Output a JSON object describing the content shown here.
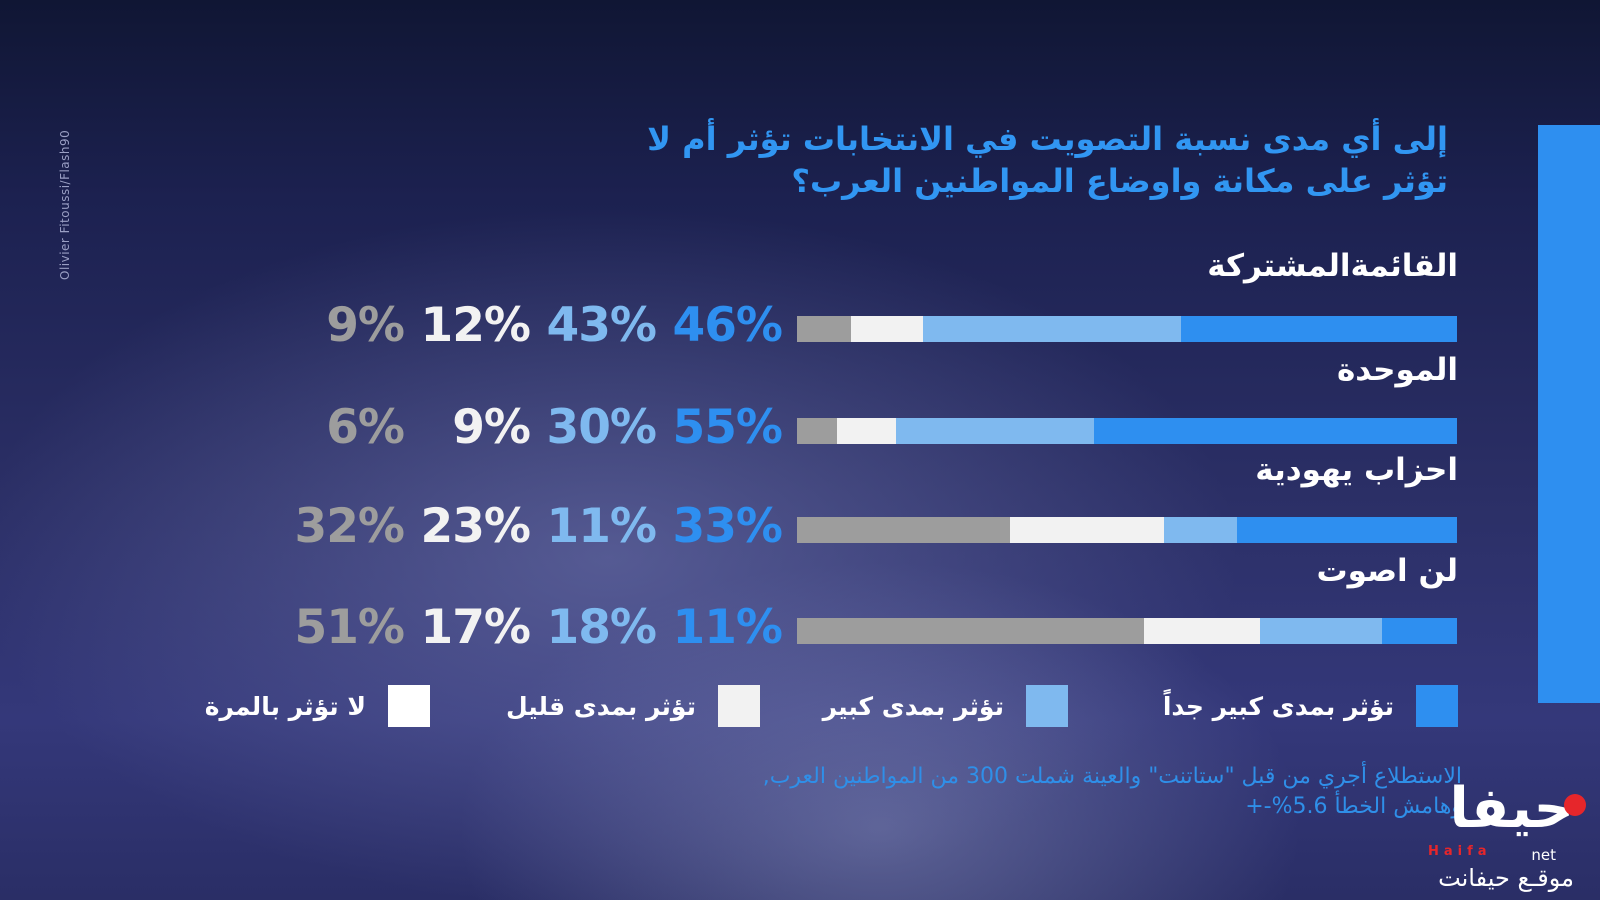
{
  "photo_credit": "Olivier Fitoussi/Flash90",
  "chart_data": {
    "type": "bar",
    "orientation": "horizontal-stacked",
    "title": "إلى أي مدى نسبة التصويت في الانتخابات تؤثر أم لا تؤثر على مكانة واوضاع المواطنين العرب؟",
    "categories": [
      "القائمةالمشتركة",
      "الموحدة",
      "احزاب يهودية",
      "لن اصوت"
    ],
    "series": [
      {
        "name": "تؤثر بمدى كبير جداً",
        "color": "#2e8ff0",
        "values": [
          46,
          55,
          33,
          11
        ]
      },
      {
        "name": "تؤثر بمدى كبير",
        "color": "#7fb9ef",
        "values": [
          43,
          30,
          11,
          18
        ]
      },
      {
        "name": "تؤثر بمدى قليل",
        "color": "#f2f2f2",
        "values": [
          12,
          9,
          23,
          17
        ]
      },
      {
        "name": "لا تؤثر بالمرة",
        "color": "#9d9d9d",
        "values": [
          9,
          6,
          32,
          51
        ]
      }
    ],
    "pct_labels": [
      [
        "46%",
        "43%",
        "12%",
        "9%"
      ],
      [
        "55%",
        "30%",
        "9%",
        "6%"
      ],
      [
        "33%",
        "11%",
        "23%",
        "32%"
      ],
      [
        "11%",
        "18%",
        "17%",
        "51%"
      ]
    ],
    "label_colors": [
      "#2e8ff0",
      "#7fb9ef",
      "#f2f2f2",
      "#9d9d9d"
    ],
    "legend_placement": "bottom",
    "note": "الاستطلاع أجري من قبل \"ستاتنت\" والعينة شملت 300 من المواطنين العرب, وهامش الخطأ 5.6%-+"
  },
  "logo": {
    "main": "حيفا",
    "latin": "Haifa",
    "net": "net",
    "subtitle": "موقـع حيفانت"
  }
}
